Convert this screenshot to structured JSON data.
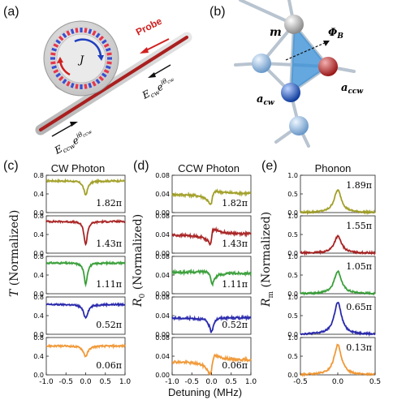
{
  "panels": {
    "a": "(a)",
    "b": "(b)",
    "c": "(c)",
    "d": "(d)",
    "e": "(e)"
  },
  "diagram_a": {
    "probe": "Probe",
    "coupling": "J",
    "cw_field": "E",
    "cw_sub": "cw",
    "cw_exp": "e",
    "cw_phase": "iθ",
    "cw_phase_sub": "cw",
    "ccw_field": "E",
    "ccw_sub": "ccw",
    "ccw_exp": "e",
    "ccw_phase": "iθ",
    "ccw_phase_sub": "ccw"
  },
  "diagram_b": {
    "m": "m",
    "phi": "Φ",
    "phi_sub": "B",
    "a_ccw": "a",
    "a_ccw_sub": "ccw",
    "a_cw": "a",
    "a_cw_sub": "cw"
  },
  "colors": {
    "olive": "#9c9a1c",
    "red": "#a31616",
    "green": "#2f9a2f",
    "blue": "#1c1ca8",
    "orange": "#f0922a"
  },
  "chart_data": [
    {
      "type": "line",
      "title": "CW Photon",
      "ylabel": "T (Normalized)",
      "xlim": [
        -1.0,
        1.0
      ],
      "x_ticks": [
        "-1.0",
        "-0.5",
        "0.0",
        "0.5",
        "1.0"
      ],
      "ylim": [
        0.0,
        0.8
      ],
      "y_ticks": [
        "0.0",
        "0.4",
        "0.8"
      ],
      "series": [
        {
          "label": "1.82π",
          "color": "#9c9a1c",
          "baseline": 0.68,
          "dip": 0.3,
          "width": 0.06,
          "center": 0.0,
          "asym": 0.0
        },
        {
          "label": "1.43π",
          "color": "#a31616",
          "baseline": 0.68,
          "dip": 0.5,
          "width": 0.05,
          "center": 0.0,
          "asym": 0.0
        },
        {
          "label": "1.11π",
          "color": "#2f9a2f",
          "baseline": 0.66,
          "dip": 0.45,
          "width": 0.05,
          "center": 0.0,
          "asym": 0.0
        },
        {
          "label": "0.52π",
          "color": "#1c1ca8",
          "baseline": 0.64,
          "dip": 0.28,
          "width": 0.07,
          "center": 0.0,
          "asym": 0.0
        },
        {
          "label": "0.06π",
          "color": "#f0922a",
          "baseline": 0.62,
          "dip": 0.22,
          "width": 0.07,
          "center": 0.0,
          "asym": 0.0
        }
      ]
    },
    {
      "type": "line",
      "title": "CCW Photon",
      "ylabel": "R0 (Normalized)",
      "xlabel": "Detuning (MHz)",
      "xlim": [
        -1.0,
        1.0
      ],
      "x_ticks": [
        "-1.0",
        "-0.5",
        "0.0",
        "0.5",
        "1.0"
      ],
      "ylim": [
        0.0,
        0.08
      ],
      "y_ticks": [
        "0.00",
        "0.04",
        "0.08"
      ],
      "series": [
        {
          "label": "1.82π",
          "color": "#9c9a1c",
          "baseline": 0.04,
          "dip": 0.018,
          "width": 0.06,
          "center": 0.0,
          "asym": 0.022
        },
        {
          "label": "1.43π",
          "color": "#a31616",
          "baseline": 0.04,
          "dip": 0.008,
          "width": 0.05,
          "center": 0.0,
          "asym": 0.03
        },
        {
          "label": "1.11π",
          "color": "#2f9a2f",
          "baseline": 0.045,
          "dip": 0.022,
          "width": 0.05,
          "center": 0.0,
          "asym": -0.015
        },
        {
          "label": "0.52π",
          "color": "#1c1ca8",
          "baseline": 0.035,
          "dip": 0.03,
          "width": 0.06,
          "center": 0.0,
          "asym": 0.005
        },
        {
          "label": "0.06π",
          "color": "#f0922a",
          "baseline": 0.03,
          "dip": 0.018,
          "width": 0.06,
          "center": 0.0,
          "asym": 0.035
        }
      ]
    },
    {
      "type": "line",
      "title": "Phonon",
      "ylabel": "Rm (Normalized)",
      "xlim": [
        -0.5,
        0.5
      ],
      "x_ticks": [
        "-0.5",
        "0.0",
        "0.5"
      ],
      "ylim": [
        0.0,
        1.0
      ],
      "y_ticks": [
        "0.0",
        "0.5",
        "1.0"
      ],
      "series": [
        {
          "label": "1.89π",
          "color": "#9c9a1c",
          "peak": 0.6,
          "width": 0.06,
          "center": 0.0
        },
        {
          "label": "1.55π",
          "color": "#a31616",
          "peak": 0.45,
          "width": 0.06,
          "center": 0.0
        },
        {
          "label": "1.05π",
          "color": "#2f9a2f",
          "peak": 0.6,
          "width": 0.06,
          "center": 0.0
        },
        {
          "label": "0.65π",
          "color": "#1c1ca8",
          "peak": 0.85,
          "width": 0.06,
          "center": 0.0
        },
        {
          "label": "0.13π",
          "color": "#f0922a",
          "peak": 0.8,
          "width": 0.06,
          "center": 0.0
        }
      ]
    }
  ],
  "axes": {
    "c_ylabel_var": "T",
    "c_ylabel_rest": " (Normalized)",
    "d_ylabel_var": "R",
    "d_ylabel_sub": "0",
    "d_ylabel_rest": " (Normalized)",
    "e_ylabel_var": "R",
    "e_ylabel_sub": "m",
    "e_ylabel_rest": " (Normalized)",
    "xlabel": "Detuning (MHz)"
  }
}
